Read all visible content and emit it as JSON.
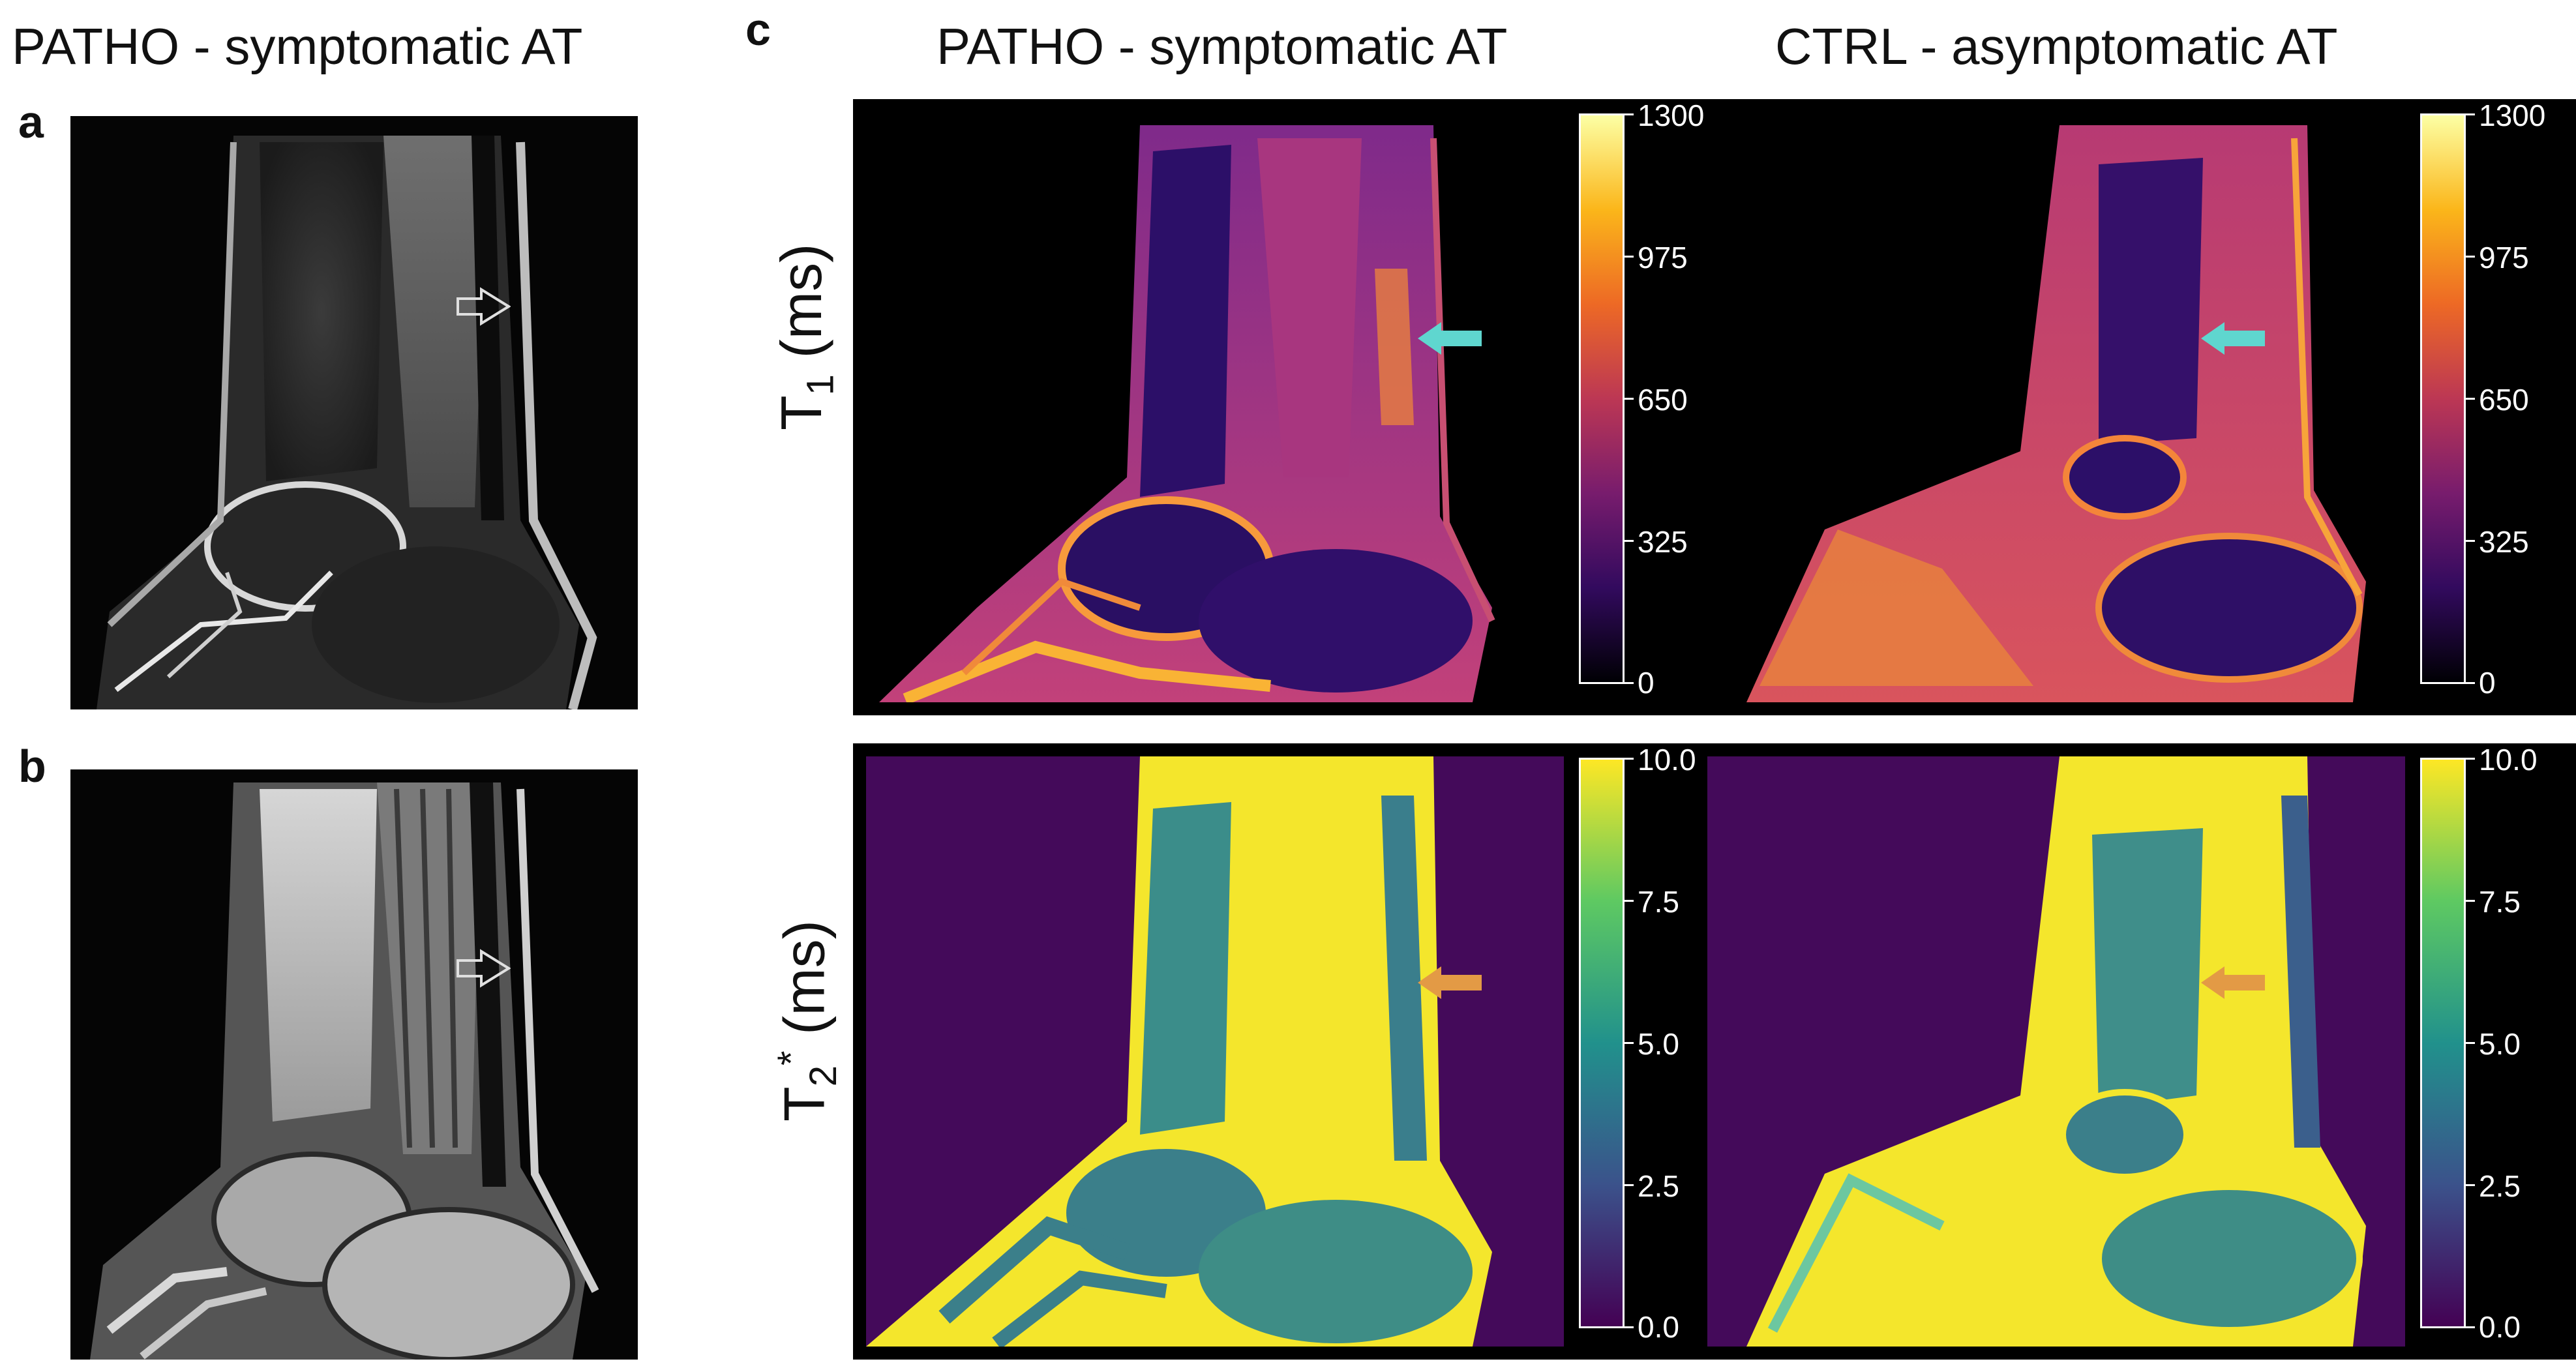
{
  "left_title": "PATHO - symptomatic AT",
  "panel_a": "a",
  "panel_b": "b",
  "panel_c": "c",
  "col_titles": [
    "PATHO - symptomatic AT",
    "CTRL - asymptomatic AT"
  ],
  "row_labels": {
    "t1_main": "T",
    "t1_sub": "1",
    "t1_unit": " (ms)",
    "t2_main": "T",
    "t2_sub": "2",
    "t2_star": "*",
    "t2_unit": " (ms)"
  },
  "t1_colorbar_ticks": [
    "1300",
    "975",
    "650",
    "325",
    "0"
  ],
  "t2_colorbar_ticks": [
    "10.0",
    "7.5",
    "5.0",
    "2.5",
    "0.0"
  ],
  "colors": {
    "arrow_t1": "#5fd6cf",
    "arrow_t2": "#e39a45",
    "t2_background": "#440a5a"
  },
  "icons": {
    "mri_arrow": "outline-right-pointing-arrow",
    "map_arrow": "solid-left-pointing-arrow"
  }
}
